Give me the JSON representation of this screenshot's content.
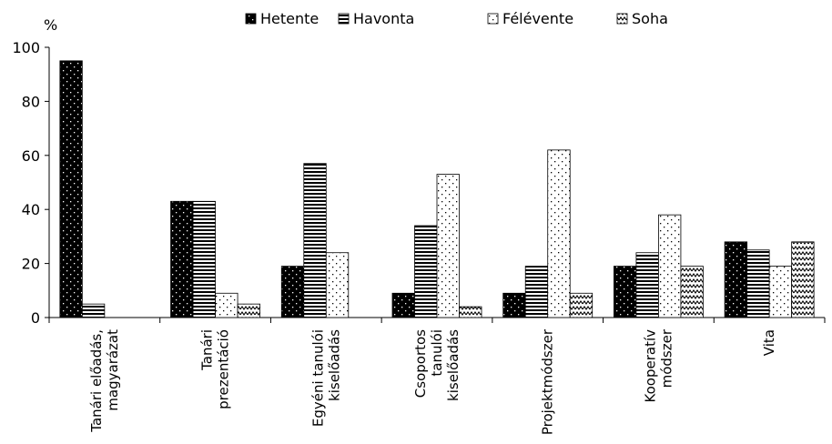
{
  "chart_data": {
    "type": "bar",
    "ylabel": "%",
    "ylim": [
      0,
      100
    ],
    "yticks": [
      0,
      20,
      40,
      60,
      80,
      100
    ],
    "grid": false,
    "legend_position": "top",
    "categories": [
      [
        "Tanári előadás,",
        "magyarázat"
      ],
      [
        "Tanári",
        "prezentáció"
      ],
      [
        "Egyéni tanulói",
        "kiselőadás"
      ],
      [
        "Csoportos",
        "tanulói",
        "kiselőadás"
      ],
      [
        "Projektmódszer"
      ],
      [
        "Kooperatív",
        "módszer"
      ],
      [
        "Vita"
      ]
    ],
    "series": [
      {
        "name": "Hetente",
        "pattern": "dark-dots",
        "values": [
          95,
          43,
          19,
          9,
          9,
          19,
          28
        ]
      },
      {
        "name": "Havonta",
        "pattern": "horizontal-lines",
        "values": [
          5,
          43,
          57,
          34,
          19,
          24,
          25
        ]
      },
      {
        "name": "Félévente",
        "pattern": "light-dots",
        "values": [
          0,
          9,
          24,
          53,
          62,
          38,
          19
        ]
      },
      {
        "name": "Soha",
        "pattern": "zigzag",
        "values": [
          0,
          5,
          0,
          4,
          9,
          19,
          28
        ]
      }
    ]
  }
}
